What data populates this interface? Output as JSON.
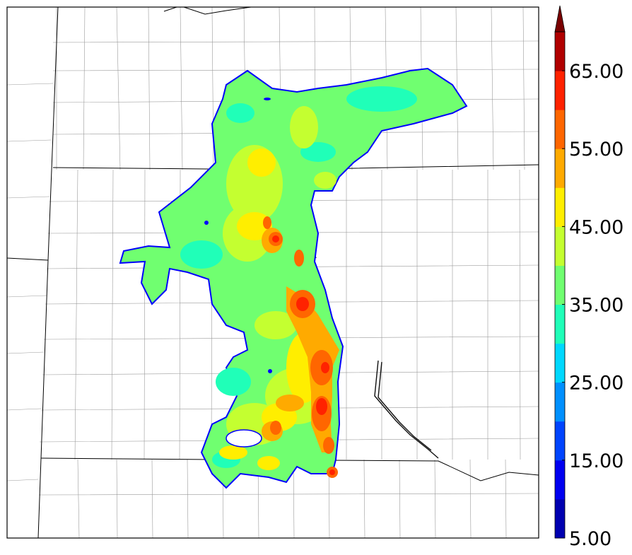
{
  "colorbar": {
    "tick_labels": [
      "5.00",
      "15.00",
      "25.00",
      "35.00",
      "45.00",
      "55.00",
      "65.00"
    ],
    "levels": [
      5,
      10,
      15,
      20,
      25,
      30,
      35,
      40,
      45,
      50,
      55,
      60,
      65,
      70
    ],
    "colors": [
      "#0000b0",
      "#0000f0",
      "#0044ff",
      "#0090ff",
      "#00d8ff",
      "#20ffb8",
      "#70ff70",
      "#c4ff30",
      "#ffee00",
      "#ffaa00",
      "#ff6600",
      "#ff2200",
      "#b00000"
    ],
    "extend": "max"
  },
  "map": {
    "projection_note": "",
    "background": "#ffffff",
    "field_outline_color": "#0000ff"
  }
}
